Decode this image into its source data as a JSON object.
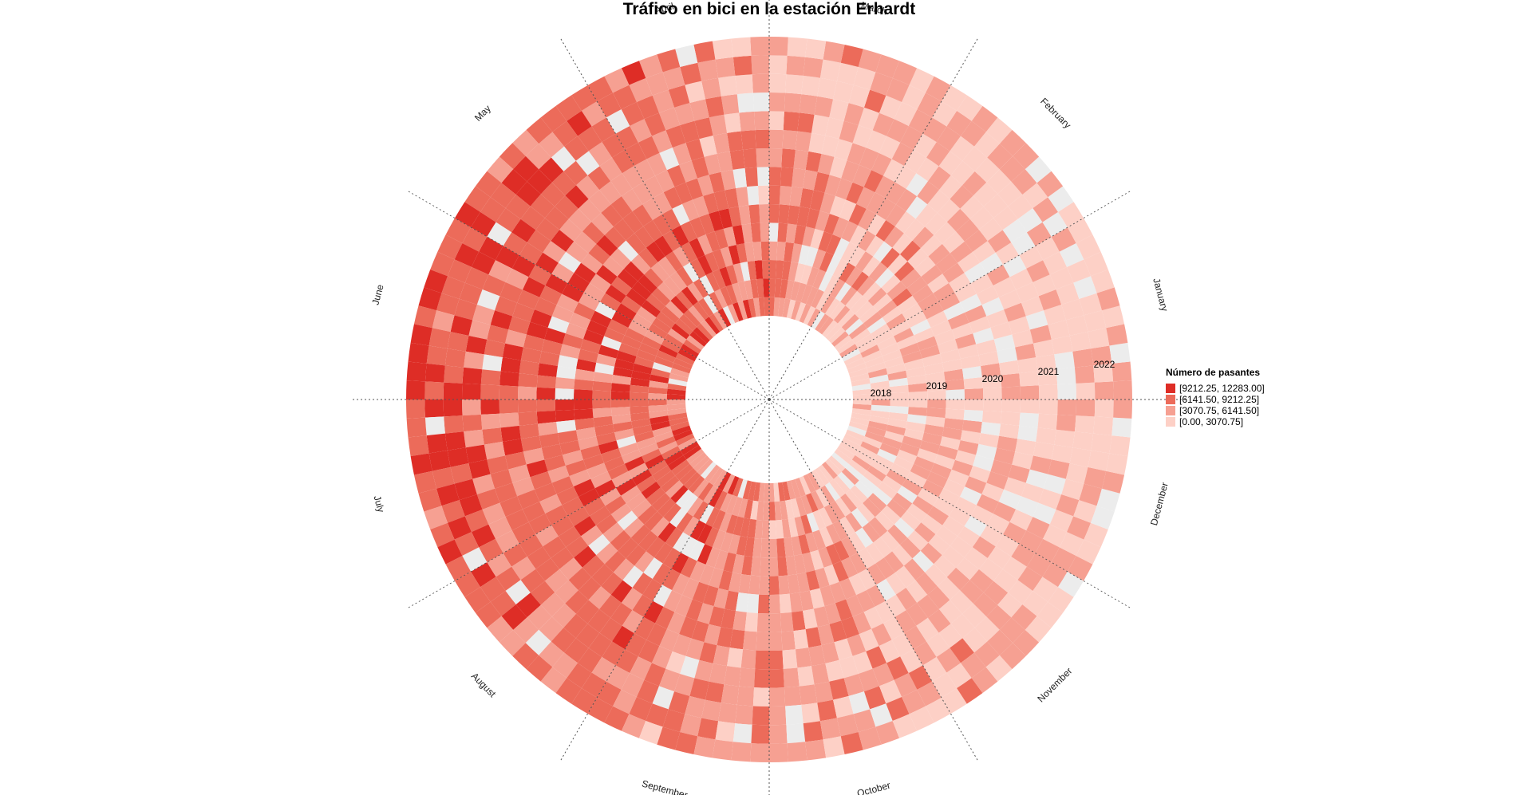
{
  "chart_data": {
    "type": "heatmap",
    "title": "Tráfico en bici en la estación Erhardt",
    "months": [
      "January",
      "February",
      "March",
      "April",
      "May",
      "June",
      "July",
      "August",
      "September",
      "October",
      "November",
      "December"
    ],
    "years": [
      "2018",
      "2019",
      "2020",
      "2021",
      "2022"
    ],
    "legend": {
      "title": "Número de pasantes",
      "position": "right",
      "bins": [
        {
          "label": "[9212.25, 12283.00]",
          "color": "#de2d26"
        },
        {
          "label": "[6141.50, 9212.25]",
          "color": "#ec6b5a"
        },
        {
          "label": "[3070.75, 6141.50]",
          "color": "#f6a092"
        },
        {
          "label": "[0.00, 3070.75]",
          "color": "#fdd0c6"
        }
      ]
    },
    "no_data_color": "#ececec",
    "grid": true,
    "rings": [
      {
        "year": "2018",
        "monthly_level": [
          0.12,
          0.15,
          0.25,
          0.55,
          0.62,
          0.68,
          0.7,
          0.62,
          0.58,
          0.42,
          0.25,
          0.15
        ]
      },
      {
        "year": "2019",
        "monthly_level": [
          0.2,
          0.26,
          0.4,
          0.5,
          0.62,
          0.68,
          0.66,
          0.58,
          0.6,
          0.46,
          0.32,
          0.22
        ]
      },
      {
        "year": "2020",
        "monthly_level": [
          0.15,
          0.18,
          0.4,
          0.45,
          0.55,
          0.64,
          0.66,
          0.56,
          0.55,
          0.44,
          0.28,
          0.18
        ]
      },
      {
        "year": "2021",
        "monthly_level": [
          0.12,
          0.15,
          0.25,
          0.42,
          0.55,
          0.65,
          0.66,
          0.55,
          0.52,
          0.42,
          0.28,
          0.2
        ]
      },
      {
        "year": "2022",
        "monthly_level": [
          0.12,
          0.15,
          0.25,
          0.35,
          0.6,
          0.7,
          0.75,
          0.66,
          0.45,
          0.4,
          0.3,
          0.2
        ]
      }
    ]
  }
}
